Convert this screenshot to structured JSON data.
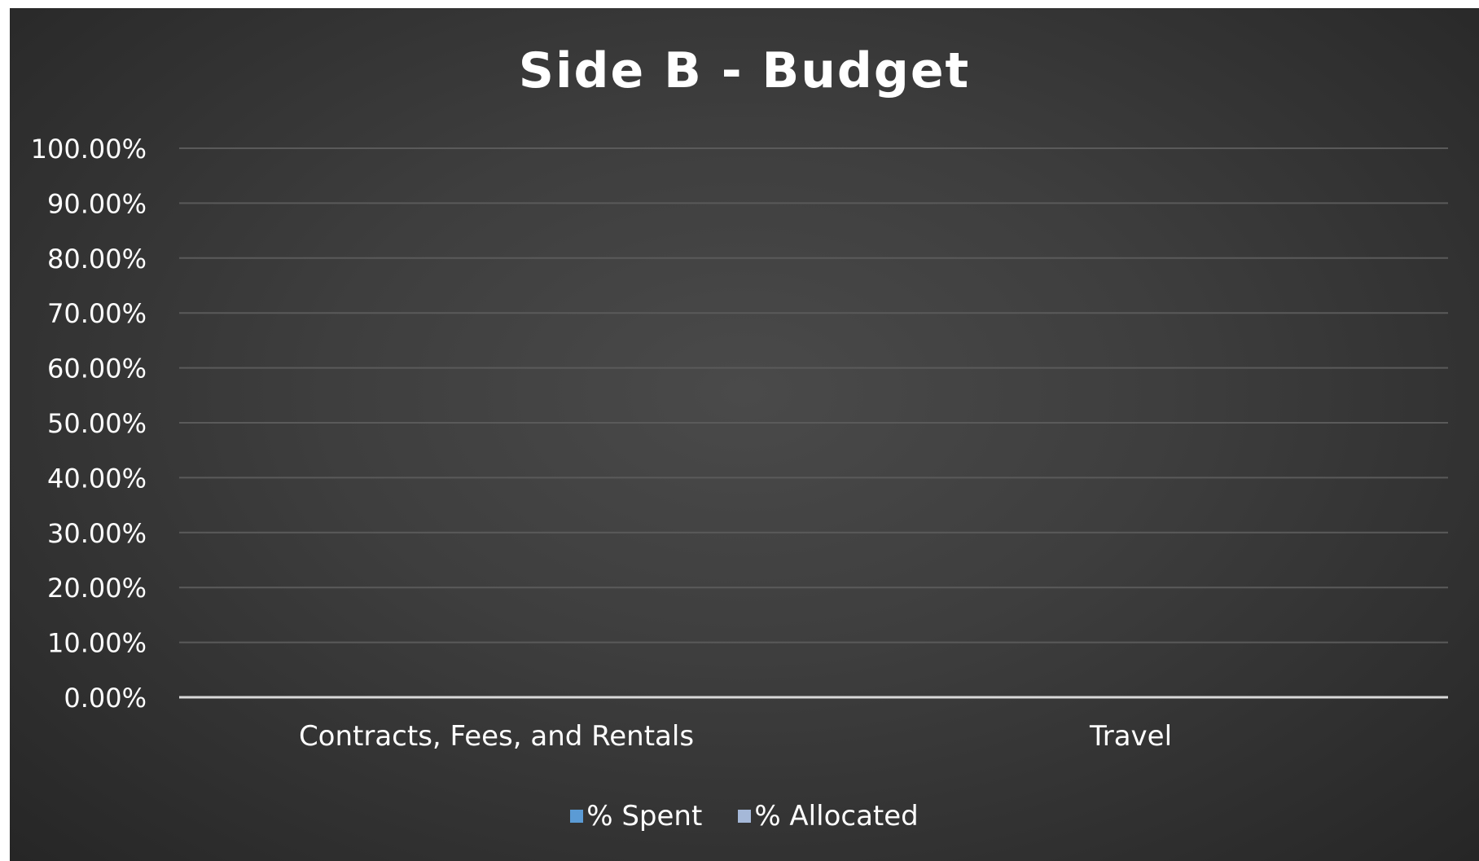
{
  "chart_data": {
    "type": "bar",
    "title": "Side B - Budget",
    "categories": [
      "Contracts, Fees, and Rentals",
      "Travel"
    ],
    "series": [
      {
        "name": "% Spent",
        "values": [
          0,
          0
        ],
        "color": "#5b9bd5"
      },
      {
        "name": "% Allocated",
        "values": [
          0,
          0
        ],
        "color": "#a5b8d8"
      }
    ],
    "y_ticks": [
      "0.00%",
      "10.00%",
      "20.00%",
      "30.00%",
      "40.00%",
      "50.00%",
      "60.00%",
      "70.00%",
      "80.00%",
      "90.00%",
      "100.00%"
    ],
    "ylim": [
      0,
      1
    ],
    "grid": true,
    "legend_position": "bottom",
    "colors": {
      "background": "#3e3e3e",
      "text": "#ffffff",
      "gridline": "#5a5a5a",
      "axis": "#d9d9d9"
    }
  }
}
